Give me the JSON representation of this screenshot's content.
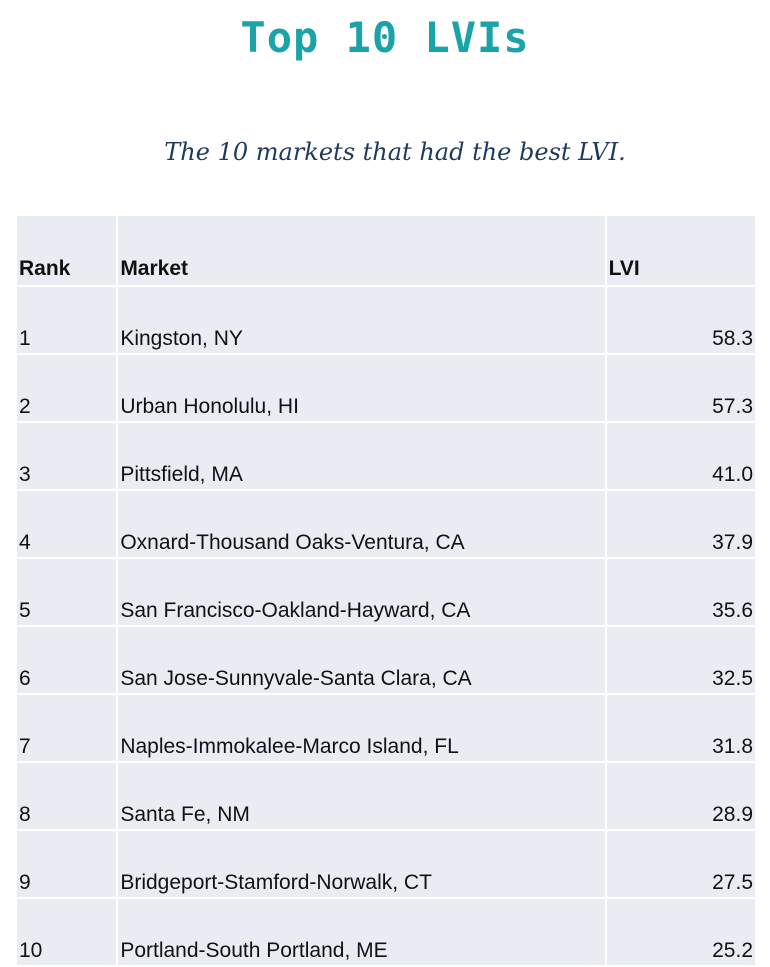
{
  "title": "Top 10 LVIs",
  "subtitle": "The 10 markets that had the best LVI.",
  "table": {
    "headers": {
      "rank": "Rank",
      "market": "Market",
      "lvi": "LVI"
    },
    "rows": [
      {
        "rank": "1",
        "market": "Kingston, NY",
        "lvi": "58.3"
      },
      {
        "rank": "2",
        "market": "Urban Honolulu, HI",
        "lvi": "57.3"
      },
      {
        "rank": "3",
        "market": "Pittsfield, MA",
        "lvi": "41.0"
      },
      {
        "rank": "4",
        "market": "Oxnard-Thousand Oaks-Ventura, CA",
        "lvi": "37.9"
      },
      {
        "rank": "5",
        "market": "San Francisco-Oakland-Hayward, CA",
        "lvi": "35.6"
      },
      {
        "rank": "6",
        "market": "San Jose-Sunnyvale-Santa Clara, CA",
        "lvi": "32.5"
      },
      {
        "rank": "7",
        "market": "Naples-Immokalee-Marco Island, FL",
        "lvi": "31.8"
      },
      {
        "rank": "8",
        "market": "Santa Fe, NM",
        "lvi": "28.9"
      },
      {
        "rank": "9",
        "market": "Bridgeport-Stamford-Norwalk, CT",
        "lvi": "27.5"
      },
      {
        "rank": "10",
        "market": "Portland-South Portland, ME",
        "lvi": "25.2"
      }
    ]
  },
  "colors": {
    "title": "#1aa3a8",
    "subtitle": "#1f3a5c",
    "table_cell_bg": "#e9ecf3"
  }
}
